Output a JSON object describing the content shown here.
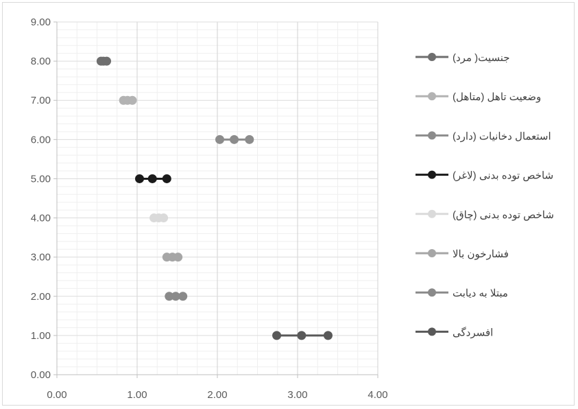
{
  "chart_data": {
    "type": "line",
    "title": "",
    "xlabel": "",
    "ylabel": "",
    "xlim": [
      0,
      4
    ],
    "ylim": [
      0,
      9
    ],
    "x_ticks": [
      "0.00",
      "1.00",
      "2.00",
      "3.00",
      "4.00"
    ],
    "y_ticks": [
      "0.00",
      "1.00",
      "2.00",
      "3.00",
      "4.00",
      "5.00",
      "6.00",
      "7.00",
      "8.00",
      "9.00"
    ],
    "grid": "on",
    "legend_position": "right",
    "series": [
      {
        "name": "جنسیت( مرد)",
        "y": 8,
        "x": [
          0.55,
          0.58,
          0.62
        ],
        "color": "#6e6e6e"
      },
      {
        "name": "وضعیت تاهل (متاهل)",
        "y": 7,
        "x": [
          0.83,
          0.88,
          0.94
        ],
        "color": "#b3b3b3"
      },
      {
        "name": "استعمال دخانیات (دارد)",
        "y": 6,
        "x": [
          2.03,
          2.21,
          2.4
        ],
        "color": "#8c8c8c"
      },
      {
        "name": "شاخص توده بدنی (لاغر)",
        "y": 5,
        "x": [
          1.03,
          1.19,
          1.37
        ],
        "color": "#1a1a1a"
      },
      {
        "name": "شاخص توده بدنی (چاق)",
        "y": 4,
        "x": [
          1.21,
          1.27,
          1.33
        ],
        "color": "#dadada"
      },
      {
        "name": "فشارخون بالا",
        "y": 3,
        "x": [
          1.37,
          1.44,
          1.51
        ],
        "color": "#a6a6a6"
      },
      {
        "name": "مبتلا به دیابت",
        "y": 2,
        "x": [
          1.4,
          1.48,
          1.57
        ],
        "color": "#8a8a8a"
      },
      {
        "name": "افسردگی",
        "y": 1,
        "x": [
          2.74,
          3.05,
          3.38
        ],
        "color": "#595959"
      }
    ]
  }
}
